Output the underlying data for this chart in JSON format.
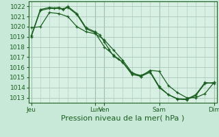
{
  "background_color": "#c8e8d8",
  "plot_bg_color": "#d8f0e4",
  "grid_color": "#a8c8b8",
  "line_color": "#1a5e20",
  "ylabel_text": "Pression niveau de la mer( hPa )",
  "ylim": [
    1012.5,
    1022.5
  ],
  "ytick_vals": [
    1013,
    1014,
    1015,
    1016,
    1017,
    1018,
    1019,
    1020,
    1021,
    1022
  ],
  "xlim": [
    -0.3,
    20.3
  ],
  "series": [
    {
      "x": [
        0,
        1,
        2,
        2.5,
        3,
        3.5,
        4,
        5,
        6,
        7,
        7.5,
        8,
        8.5,
        9,
        9.5,
        10,
        11,
        12,
        13,
        14,
        15,
        16,
        17,
        18,
        19,
        20
      ],
      "y": [
        1019.1,
        1021.7,
        1021.9,
        1021.85,
        1021.9,
        1021.75,
        1022.0,
        1021.3,
        1019.9,
        1019.5,
        1019.2,
        1018.5,
        1017.8,
        1017.1,
        1016.8,
        1016.5,
        1015.3,
        1015.1,
        1015.5,
        1014.0,
        1013.3,
        1012.85,
        1012.8,
        1013.2,
        1014.4,
        1014.5
      ]
    },
    {
      "x": [
        0,
        1,
        2,
        3,
        3.5,
        4,
        5,
        6,
        7,
        8,
        9,
        10,
        11,
        12,
        13,
        14,
        15,
        16,
        17,
        18,
        19,
        20
      ],
      "y": [
        1019.0,
        1021.6,
        1021.8,
        1021.8,
        1021.7,
        1021.9,
        1021.2,
        1019.8,
        1019.4,
        1018.0,
        1017.2,
        1016.5,
        1015.4,
        1015.2,
        1015.6,
        1014.1,
        1013.3,
        1012.9,
        1012.85,
        1013.3,
        1014.5,
        1014.4
      ]
    },
    {
      "x": [
        0,
        1,
        2,
        3,
        4,
        5,
        6,
        7,
        8,
        9,
        10,
        11,
        12,
        13,
        14,
        15,
        16,
        17,
        18,
        19,
        20
      ],
      "y": [
        1019.9,
        1020.0,
        1021.4,
        1021.3,
        1021.0,
        1020.0,
        1019.5,
        1019.3,
        1018.7,
        1017.7,
        1016.7,
        1015.5,
        1015.1,
        1015.7,
        1015.6,
        1014.2,
        1013.5,
        1013.0,
        1013.0,
        1013.4,
        1014.5
      ]
    }
  ],
  "major_xtick_positions": [
    0,
    7,
    8,
    14,
    20
  ],
  "major_xtick_labels": [
    "Jeu",
    "Lun",
    "Ven",
    "Sam",
    "Dim"
  ],
  "xlabel_fontsize": 8,
  "ytick_fontsize": 6.5,
  "xtick_fontsize": 6.5
}
